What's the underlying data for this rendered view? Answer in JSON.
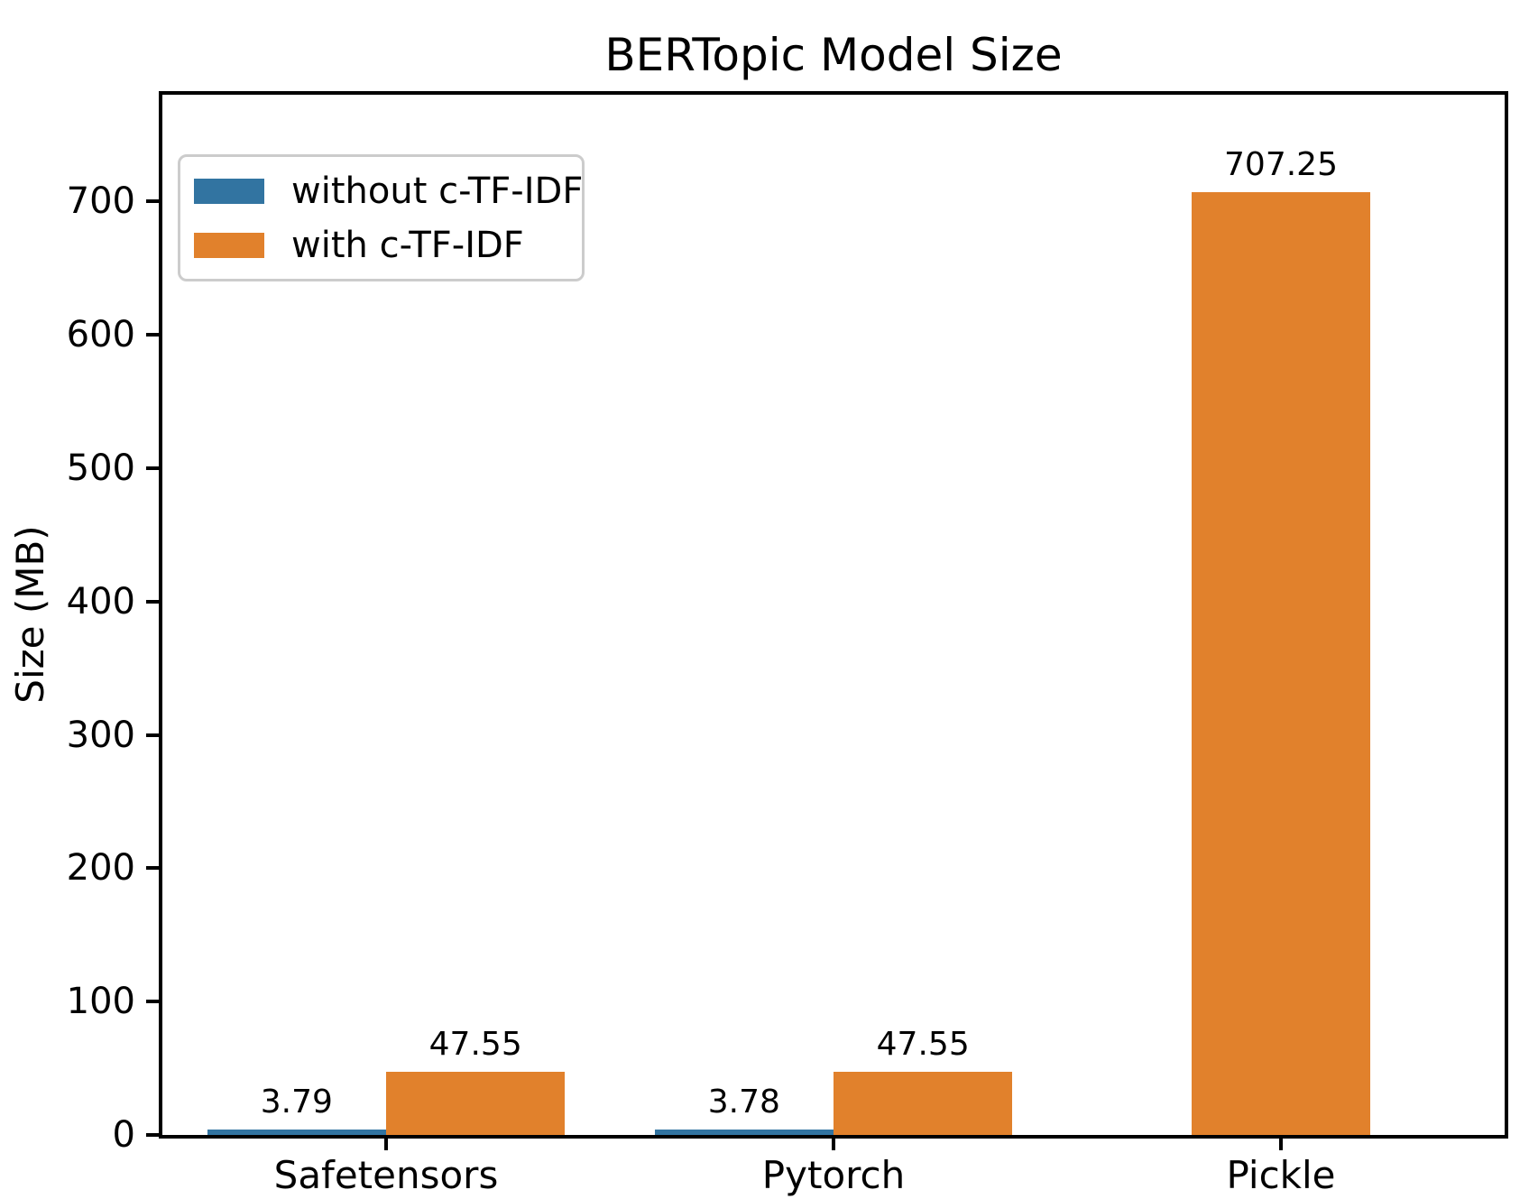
{
  "chart_data": {
    "type": "bar",
    "title": "BERTopic Model Size",
    "xlabel": "",
    "ylabel": "Size (MB)",
    "categories": [
      "Safetensors",
      "Pytorch",
      "Pickle"
    ],
    "series": [
      {
        "name": "without c-TF-IDF",
        "color": "#3274a1",
        "values": [
          3.79,
          3.78,
          null
        ]
      },
      {
        "name": "with c-TF-IDF",
        "color": "#e1812c",
        "values": [
          47.55,
          47.55,
          707.25
        ]
      }
    ],
    "value_labels": [
      [
        "3.79",
        "3.78",
        null
      ],
      [
        "47.55",
        "47.55",
        "707.25"
      ]
    ],
    "yticks": [
      0,
      100,
      200,
      300,
      400,
      500,
      600,
      700
    ],
    "ylim": [
      0,
      780
    ],
    "bar_width": 0.4,
    "grid": false,
    "legend_position": "upper left",
    "colors": {
      "axis": "#000000",
      "legend_border": "#cccccc",
      "background": "#ffffff"
    }
  }
}
